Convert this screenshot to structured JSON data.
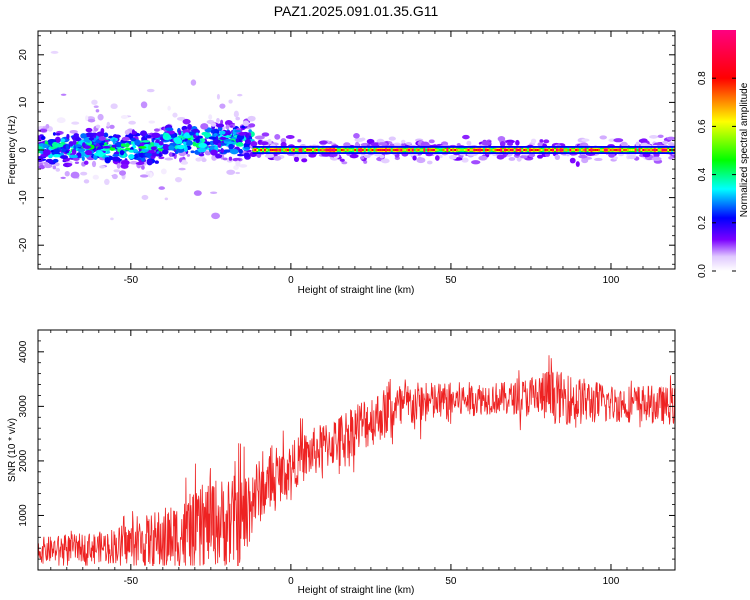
{
  "title": "PAZ1.2025.091.01.35.G11",
  "colorbar": {
    "label": "Normalized spectral amplitude",
    "ticks": [
      0.0,
      0.2,
      0.4,
      0.6,
      0.8
    ],
    "tick_labels": [
      "0.0",
      "0.2",
      "0.4",
      "0.6",
      "0.8"
    ],
    "range": [
      0,
      1
    ],
    "colormap": [
      "#ffffff",
      "#7b00ff",
      "#0000ff",
      "#00ffff",
      "#00ff00",
      "#ffff00",
      "#ff0000",
      "#ff0080"
    ]
  },
  "chart_data": [
    {
      "type": "heatmap",
      "xlabel": "Height of straight line (km)",
      "ylabel": "Frequency (Hz)",
      "xlim": [
        -79,
        120
      ],
      "ylim": [
        -25,
        25
      ],
      "xticks": [
        -50,
        0,
        50,
        100
      ],
      "xtick_labels": [
        "-50",
        "0",
        "50",
        "100"
      ],
      "yticks": [
        -20,
        -10,
        0,
        10,
        20
      ],
      "ytick_labels": [
        "-20",
        "-10",
        "0",
        "10",
        "20"
      ],
      "segments": [
        {
          "x_range": [
            -79,
            -12
          ],
          "freq_center": 0.5,
          "freq_spread": 3.5,
          "max_amplitude": 0.35
        },
        {
          "x_range": [
            -12,
            120
          ],
          "freq_center": 0.0,
          "freq_spread": 0.6,
          "max_amplitude": 0.95
        }
      ]
    },
    {
      "type": "line",
      "xlabel": "Height of straight line (km)",
      "ylabel": "SNR (10 * v/v)",
      "xlim": [
        -79,
        120
      ],
      "ylim": [
        0,
        4400
      ],
      "xticks": [
        -50,
        0,
        50,
        100
      ],
      "xtick_labels": [
        "-50",
        "0",
        "50",
        "100"
      ],
      "yticks": [
        1000,
        2000,
        3000,
        4000
      ],
      "ytick_labels": [
        "1000",
        "2000",
        "3000",
        "4000"
      ],
      "series": [
        {
          "color": "#ee2222",
          "x": [
            -79,
            -70,
            -60,
            -50,
            -40,
            -30,
            -25,
            -20,
            -15,
            -12,
            -8,
            -5,
            0,
            5,
            10,
            15,
            20,
            25,
            30,
            35,
            40,
            50,
            60,
            70,
            80,
            90,
            100,
            110,
            120
          ],
          "y": [
            350,
            400,
            420,
            480,
            550,
            700,
            900,
            850,
            900,
            1350,
            1500,
            1650,
            1900,
            2100,
            2250,
            2400,
            2600,
            2750,
            2900,
            3000,
            3050,
            3100,
            3150,
            3150,
            3200,
            3100,
            3050,
            3050,
            3000
          ],
          "noise_amplitude": [
            250,
            250,
            280,
            400,
            600,
            700,
            800,
            850,
            900,
            700,
            500,
            500,
            450,
            450,
            450,
            450,
            500,
            500,
            450,
            450,
            400,
            350,
            300,
            300,
            500,
            450,
            350,
            350,
            350
          ]
        }
      ]
    }
  ]
}
